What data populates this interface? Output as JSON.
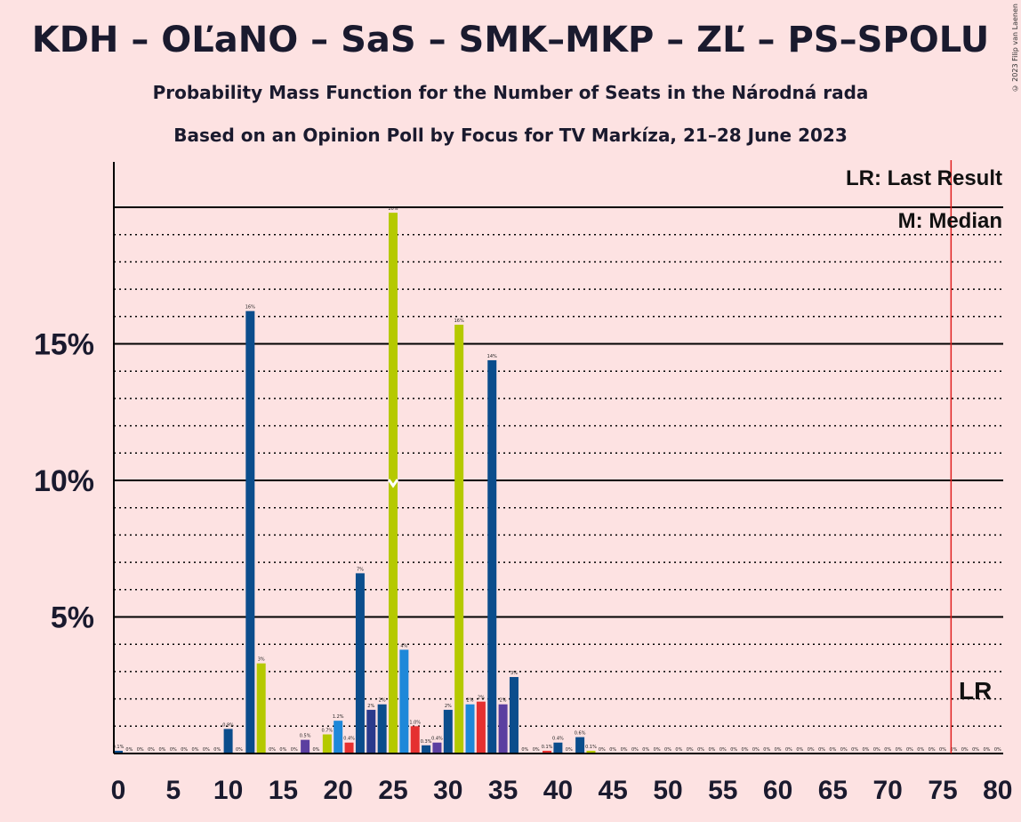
{
  "title": "KDH – OĽaNO – SaS – SMK–MKP – ZĽ – PS–SPOLU",
  "subtitle1": "Probability Mass Function for the Number of Seats in the Národná rada",
  "subtitle2": "Based on an Opinion Poll by Focus for TV Markíza, 21–28 June 2023",
  "copyright": "© 2023 Filip van Laenen",
  "legend": {
    "lr": "LR: Last Result",
    "median": "M: Median"
  },
  "lr_marker": "LR",
  "median_marker": "M",
  "colors": {
    "background": "#fde2e2",
    "text": "#1a1a2e",
    "last_result_line": "#e02020",
    "bar_colors": [
      "#0b4d8c",
      "#b5c900",
      "#5b3fa0",
      "#1e88d9",
      "#e53030",
      "#2a3a8c"
    ]
  },
  "chart_data": {
    "type": "bar",
    "xlabel": "",
    "ylabel": "",
    "xlim": [
      0,
      80
    ],
    "ylim": [
      0,
      21
    ],
    "y_ticks": [
      {
        "value": 5,
        "label": "5%"
      },
      {
        "value": 10,
        "label": "10%"
      },
      {
        "value": 15,
        "label": "15%"
      }
    ],
    "x_tick_labels": [
      "0",
      "5",
      "10",
      "15",
      "20",
      "25",
      "30",
      "35",
      "40",
      "45",
      "50",
      "55",
      "60",
      "65",
      "70",
      "75",
      "80"
    ],
    "last_result_seat": 76,
    "median_seat": 25,
    "bars": [
      {
        "x": 0,
        "value": 0.1,
        "label": "0.1%",
        "color": "#0b4d8c"
      },
      {
        "x": 1,
        "value": 0,
        "label": "0%",
        "color": "#0b4d8c"
      },
      {
        "x": 2,
        "value": 0,
        "label": "0%",
        "color": "#0b4d8c"
      },
      {
        "x": 3,
        "value": 0,
        "label": "0%",
        "color": "#0b4d8c"
      },
      {
        "x": 4,
        "value": 0,
        "label": "0%",
        "color": "#0b4d8c"
      },
      {
        "x": 5,
        "value": 0,
        "label": "0%",
        "color": "#0b4d8c"
      },
      {
        "x": 6,
        "value": 0,
        "label": "0%",
        "color": "#0b4d8c"
      },
      {
        "x": 7,
        "value": 0,
        "label": "0%",
        "color": "#0b4d8c"
      },
      {
        "x": 8,
        "value": 0,
        "label": "0%",
        "color": "#0b4d8c"
      },
      {
        "x": 9,
        "value": 0,
        "label": "0%",
        "color": "#0b4d8c"
      },
      {
        "x": 10,
        "value": 0.9,
        "label": "0.9%",
        "color": "#0b4d8c"
      },
      {
        "x": 11,
        "value": 0,
        "label": "0%",
        "color": "#0b4d8c"
      },
      {
        "x": 12,
        "value": 16.2,
        "label": "16%",
        "color": "#0b4d8c"
      },
      {
        "x": 13,
        "value": 3.3,
        "label": "3%",
        "color": "#b5c900"
      },
      {
        "x": 14,
        "value": 0,
        "label": "0%",
        "color": "#0b4d8c"
      },
      {
        "x": 15,
        "value": 0,
        "label": "0%",
        "color": "#0b4d8c"
      },
      {
        "x": 16,
        "value": 0,
        "label": "0%",
        "color": "#0b4d8c"
      },
      {
        "x": 17,
        "value": 0.5,
        "label": "0.5%",
        "color": "#5b3fa0"
      },
      {
        "x": 18,
        "value": 0,
        "label": "0%",
        "color": "#0b4d8c"
      },
      {
        "x": 19,
        "value": 0.7,
        "label": "0.7%",
        "color": "#b5c900"
      },
      {
        "x": 20,
        "value": 1.2,
        "label": "1.2%",
        "color": "#1e88d9"
      },
      {
        "x": 21,
        "value": 0.4,
        "label": "0.4%",
        "color": "#e53030"
      },
      {
        "x": 22,
        "value": 6.6,
        "label": "7%",
        "color": "#0b4d8c"
      },
      {
        "x": 23,
        "value": 1.6,
        "label": "2%",
        "color": "#2a3a8c"
      },
      {
        "x": 24,
        "value": 1.8,
        "label": "2%",
        "color": "#0b4d8c"
      },
      {
        "x": 25,
        "value": 19.8,
        "label": "20%",
        "color": "#b5c900"
      },
      {
        "x": 26,
        "value": 3.8,
        "label": "4%",
        "color": "#1e88d9"
      },
      {
        "x": 27,
        "value": 1.0,
        "label": "1.0%",
        "color": "#e53030"
      },
      {
        "x": 28,
        "value": 0.3,
        "label": "0.3%",
        "color": "#0b4d8c"
      },
      {
        "x": 29,
        "value": 0.4,
        "label": "0.4%",
        "color": "#5b3fa0"
      },
      {
        "x": 30,
        "value": 1.6,
        "label": "2%",
        "color": "#0b4d8c"
      },
      {
        "x": 31,
        "value": 15.7,
        "label": "16%",
        "color": "#b5c900"
      },
      {
        "x": 32,
        "value": 1.8,
        "label": "2%",
        "color": "#1e88d9"
      },
      {
        "x": 33,
        "value": 1.9,
        "label": "2%",
        "color": "#e53030"
      },
      {
        "x": 34,
        "value": 14.4,
        "label": "14%",
        "color": "#0b4d8c"
      },
      {
        "x": 35,
        "value": 1.8,
        "label": "2%",
        "color": "#5b3fa0"
      },
      {
        "x": 36,
        "value": 2.8,
        "label": "3%",
        "color": "#0b4d8c"
      },
      {
        "x": 37,
        "value": 0,
        "label": "0%",
        "color": "#0b4d8c"
      },
      {
        "x": 38,
        "value": 0,
        "label": "0%",
        "color": "#0b4d8c"
      },
      {
        "x": 39,
        "value": 0.1,
        "label": "0.1%",
        "color": "#e53030"
      },
      {
        "x": 40,
        "value": 0.4,
        "label": "0.4%",
        "color": "#0b4d8c"
      },
      {
        "x": 41,
        "value": 0,
        "label": "0%",
        "color": "#0b4d8c"
      },
      {
        "x": 42,
        "value": 0.6,
        "label": "0.6%",
        "color": "#0b4d8c"
      },
      {
        "x": 43,
        "value": 0.1,
        "label": "0.1%",
        "color": "#b5c900"
      },
      {
        "x": 44,
        "value": 0,
        "label": "0%",
        "color": "#0b4d8c"
      },
      {
        "x": 45,
        "value": 0,
        "label": "0%",
        "color": "#0b4d8c"
      },
      {
        "x": 46,
        "value": 0,
        "label": "0%",
        "color": "#0b4d8c"
      },
      {
        "x": 47,
        "value": 0,
        "label": "0%",
        "color": "#0b4d8c"
      },
      {
        "x": 48,
        "value": 0,
        "label": "0%",
        "color": "#0b4d8c"
      },
      {
        "x": 49,
        "value": 0,
        "label": "0%",
        "color": "#0b4d8c"
      },
      {
        "x": 50,
        "value": 0,
        "label": "0%",
        "color": "#0b4d8c"
      },
      {
        "x": 51,
        "value": 0,
        "label": "0%",
        "color": "#0b4d8c"
      },
      {
        "x": 52,
        "value": 0,
        "label": "0%",
        "color": "#0b4d8c"
      },
      {
        "x": 53,
        "value": 0,
        "label": "0%",
        "color": "#0b4d8c"
      },
      {
        "x": 54,
        "value": 0,
        "label": "0%",
        "color": "#0b4d8c"
      },
      {
        "x": 55,
        "value": 0,
        "label": "0%",
        "color": "#0b4d8c"
      },
      {
        "x": 56,
        "value": 0,
        "label": "0%",
        "color": "#0b4d8c"
      },
      {
        "x": 57,
        "value": 0,
        "label": "0%",
        "color": "#0b4d8c"
      },
      {
        "x": 58,
        "value": 0,
        "label": "0%",
        "color": "#0b4d8c"
      },
      {
        "x": 59,
        "value": 0,
        "label": "0%",
        "color": "#0b4d8c"
      },
      {
        "x": 60,
        "value": 0,
        "label": "0%",
        "color": "#0b4d8c"
      },
      {
        "x": 61,
        "value": 0,
        "label": "0%",
        "color": "#0b4d8c"
      },
      {
        "x": 62,
        "value": 0,
        "label": "0%",
        "color": "#0b4d8c"
      },
      {
        "x": 63,
        "value": 0,
        "label": "0%",
        "color": "#0b4d8c"
      },
      {
        "x": 64,
        "value": 0,
        "label": "0%",
        "color": "#0b4d8c"
      },
      {
        "x": 65,
        "value": 0,
        "label": "0%",
        "color": "#0b4d8c"
      },
      {
        "x": 66,
        "value": 0,
        "label": "0%",
        "color": "#0b4d8c"
      },
      {
        "x": 67,
        "value": 0,
        "label": "0%",
        "color": "#0b4d8c"
      },
      {
        "x": 68,
        "value": 0,
        "label": "0%",
        "color": "#0b4d8c"
      },
      {
        "x": 69,
        "value": 0,
        "label": "0%",
        "color": "#0b4d8c"
      },
      {
        "x": 70,
        "value": 0,
        "label": "0%",
        "color": "#0b4d8c"
      },
      {
        "x": 71,
        "value": 0,
        "label": "0%",
        "color": "#0b4d8c"
      },
      {
        "x": 72,
        "value": 0,
        "label": "0%",
        "color": "#0b4d8c"
      },
      {
        "x": 73,
        "value": 0,
        "label": "0%",
        "color": "#0b4d8c"
      },
      {
        "x": 74,
        "value": 0,
        "label": "0%",
        "color": "#0b4d8c"
      },
      {
        "x": 75,
        "value": 0,
        "label": "0%",
        "color": "#0b4d8c"
      },
      {
        "x": 76,
        "value": 0,
        "label": "0%",
        "color": "#0b4d8c"
      },
      {
        "x": 77,
        "value": 0,
        "label": "0%",
        "color": "#0b4d8c"
      },
      {
        "x": 78,
        "value": 0,
        "label": "0%",
        "color": "#0b4d8c"
      },
      {
        "x": 79,
        "value": 0,
        "label": "0%",
        "color": "#0b4d8c"
      },
      {
        "x": 80,
        "value": 0,
        "label": "0%",
        "color": "#0b4d8c"
      }
    ]
  }
}
